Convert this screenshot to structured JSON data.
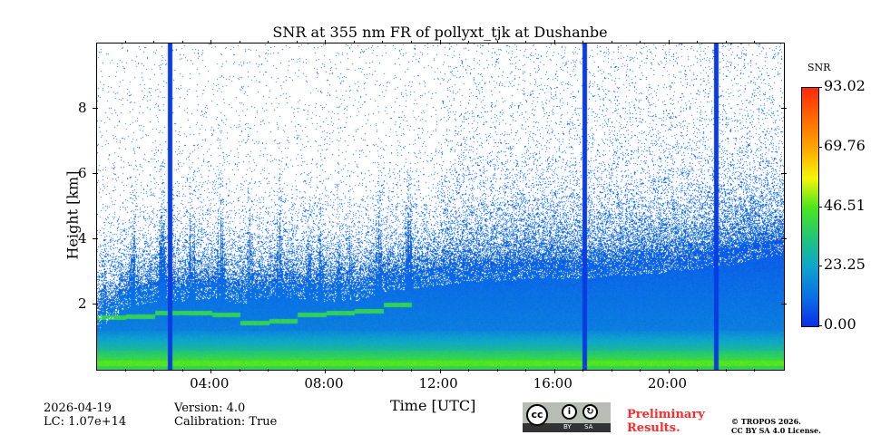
{
  "chart_data": {
    "type": "heatmap",
    "title": "SNR at 355 nm FR of pollyxt_tjk at Dushanbe",
    "xlabel": "Time [UTC]",
    "ylabel": "Height [km]",
    "xlim_hours": [
      0,
      24
    ],
    "ylim": [
      0,
      10
    ],
    "xticks": [
      {
        "h": 4,
        "label": "04:00"
      },
      {
        "h": 8,
        "label": "08:00"
      },
      {
        "h": 12,
        "label": "12:00"
      },
      {
        "h": 16,
        "label": "16:00"
      },
      {
        "h": 20,
        "label": "20:00"
      }
    ],
    "yticks": [
      {
        "v": 2,
        "label": "2"
      },
      {
        "v": 4,
        "label": "4"
      },
      {
        "v": 6,
        "label": "6"
      },
      {
        "v": 8,
        "label": "8"
      }
    ],
    "colorbar": {
      "label": "SNR",
      "min": 0,
      "max": 93.02,
      "ticks": [
        "0.00",
        "23.25",
        "46.51",
        "69.76",
        "93.02"
      ]
    },
    "dense_layer_top_km_hourly": [
      1.7,
      2.4,
      2.6,
      2.6,
      2.7,
      2.5,
      2.7,
      2.7,
      2.6,
      2.6,
      2.9,
      3.0,
      3.1,
      3.2,
      3.2,
      3.3,
      3.3,
      3.3,
      3.4,
      3.4,
      3.5,
      3.6,
      3.7,
      3.9,
      4.0
    ],
    "boundary_layer_km_hourly": [
      1.6,
      1.65,
      1.75,
      1.75,
      1.7,
      1.45,
      1.5,
      1.7,
      1.75,
      1.8,
      2.0,
      null,
      null,
      null,
      null,
      null,
      null,
      null,
      null,
      null,
      null,
      null,
      null,
      null,
      null
    ],
    "no_signal_periods_hours": [
      [
        2.45,
        2.6
      ],
      [
        16.95,
        17.1
      ],
      [
        21.55,
        21.7
      ]
    ]
  },
  "footer": {
    "date": "2026-04-19",
    "lc": "LC: 1.07e+14",
    "version": "Version: 4.0",
    "calibration": "Calibration: True",
    "preliminary": "Preliminary",
    "results": "Results.",
    "copyright": "© TROPOS 2026.",
    "license": "CC BY SA 4.0 License.",
    "cc_by": "BY",
    "cc_sa": "SA",
    "cc": "cc"
  }
}
